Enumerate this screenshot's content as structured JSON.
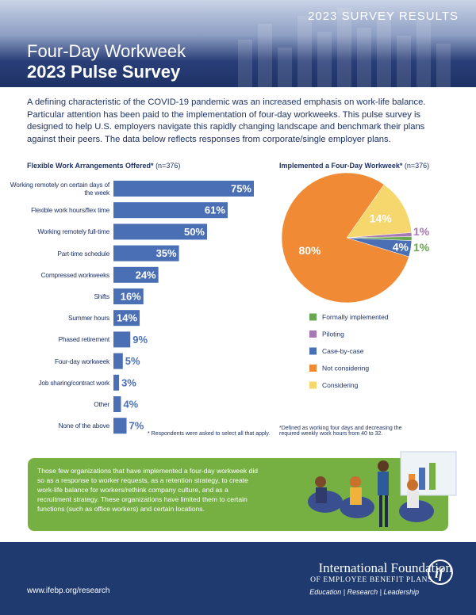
{
  "header": {
    "kicker": "2023 SURVEY RESULTS",
    "title": "Four-Day Workweek",
    "subtitle": "2023 Pulse Survey"
  },
  "intro": "A defining characteristic of the COVID-19 pandemic was an increased emphasis on work-life balance. Particular attention has been paid to the implementation of four-day workweeks. This pulse survey is designed to help U.S. employers navigate this rapidly changing landscape and benchmark their plans against their peers. The data below reflects responses from corporate/single employer plans.",
  "chart_data": [
    {
      "type": "bar",
      "orientation": "horizontal",
      "title": "Flexible Work Arrangements Offered*",
      "subtitle": "(n=376)",
      "color": "#4a6fb5",
      "categories": [
        "Working remotely on certain days of the week",
        "Flexible work hours/flex time",
        "Working remotely full-time",
        "Part-time schedule",
        "Compressed workweeks",
        "Shifts",
        "Summer hours",
        "Phased retirement",
        "Four-day workweek",
        "Job sharing/contract work",
        "Other",
        "None of the above"
      ],
      "values": [
        75,
        61,
        50,
        35,
        24,
        16,
        14,
        9,
        5,
        3,
        4,
        7
      ],
      "value_labels": [
        "75%",
        "61%",
        "50%",
        "35%",
        "24%",
        "16%",
        "14%",
        "9%",
        "5%",
        "3%",
        "4%",
        "7%"
      ],
      "footnote": "* Respondents were asked to select all that apply."
    },
    {
      "type": "pie",
      "title": "Implemented a Four-Day Workweek*",
      "subtitle": "(n=376)",
      "categories": [
        "Formally implemented",
        "Piloting",
        "Case-by-case",
        "Not considering",
        "Considering"
      ],
      "values": [
        1,
        1,
        4,
        80,
        14
      ],
      "value_labels": [
        "1%",
        "1%",
        "4%",
        "80%",
        "14%"
      ],
      "colors": [
        "#6aa84f",
        "#a678b4",
        "#4a6fb5",
        "#f08a34",
        "#f5d76e"
      ],
      "footnote": "*Defined as working four days and decreasing the required weekly work hours from 40 to 32."
    }
  ],
  "callout": "Those few organizations that have implemented a four-day workweek did so as a response to worker requests, as a retention strategy, to create work-life balance for workers/rethink company culture, and as a recruitment strategy. These organizations have limited them to certain functions (such as office workers) and certain locations.",
  "footer": {
    "url": "www.ifebp.org/research",
    "org_name": "International Foundation",
    "org_sub": "OF EMPLOYEE BENEFIT PLANS",
    "tagline": "Education | Research | Leadership"
  }
}
